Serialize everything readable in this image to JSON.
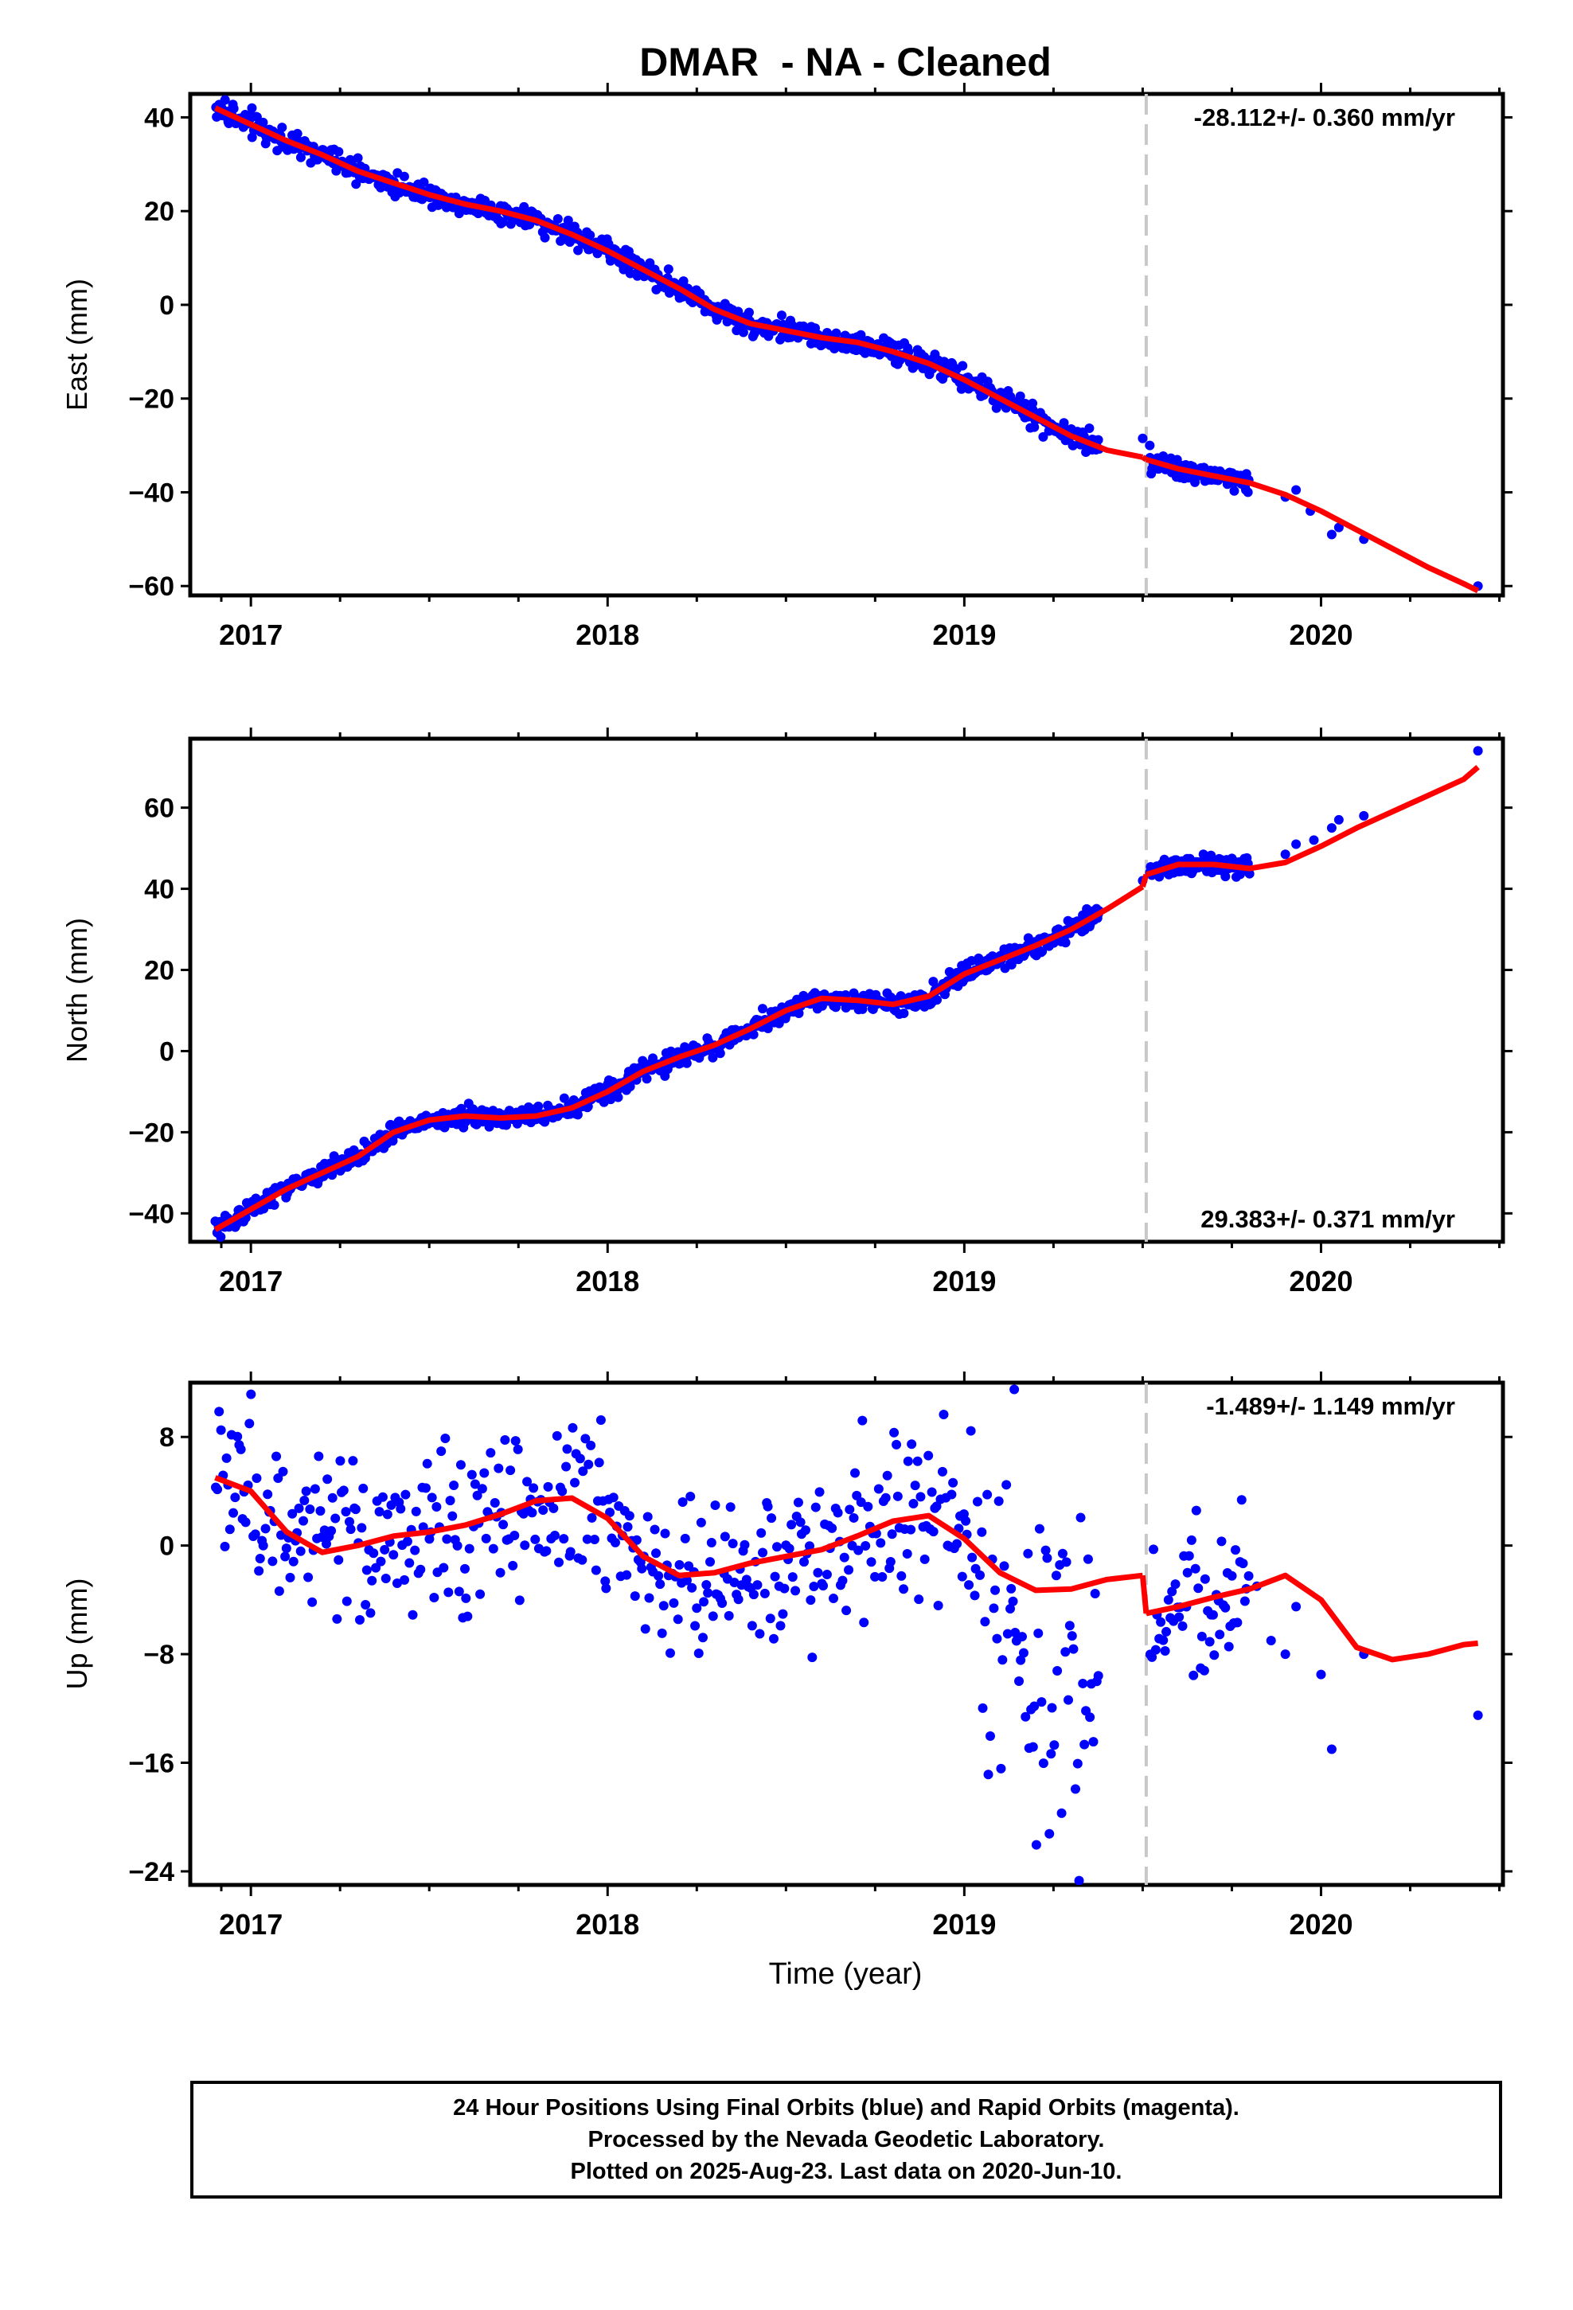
{
  "title": "DMAR  - NA - Cleaned",
  "xlabel": "Time (year)",
  "footer": {
    "line1": "24 Hour Positions Using Final Orbits (blue) and Rapid Orbits (magenta).",
    "line2": "Processed by the Nevada Geodetic Laboratory.",
    "line3": "Plotted on 2025-Aug-23. Last data on 2020-Jun-10."
  },
  "colors": {
    "data": "#0000ff",
    "model": "#ff0000",
    "break_line": "#c8c8c8",
    "frame": "#000000"
  },
  "chart_data": [
    {
      "type": "scatter",
      "component": "east",
      "ylabel": "East (mm)",
      "rate_label": "-28.112+/- 0.360 mm/yr",
      "rate_position": "top",
      "xlim": [
        2016.83,
        2020.51
      ],
      "ylim": [
        -62,
        45
      ],
      "yticks": [
        40,
        20,
        0,
        -20,
        -40,
        -60
      ],
      "xticks": [
        2017,
        2018,
        2019,
        2020
      ],
      "break_epoch": 2019.51,
      "model_x": [
        2016.9,
        2017.0,
        2017.1,
        2017.2,
        2017.3,
        2017.4,
        2017.5,
        2017.6,
        2017.7,
        2017.8,
        2017.9,
        2018.0,
        2018.1,
        2018.2,
        2018.3,
        2018.4,
        2018.5,
        2018.6,
        2018.7,
        2018.8,
        2018.9,
        2019.0,
        2019.1,
        2019.2,
        2019.3,
        2019.4,
        2019.5,
        2019.51,
        2019.6,
        2019.7,
        2019.8,
        2019.9,
        2020.0,
        2020.1,
        2020.2,
        2020.3,
        2020.4,
        2020.44
      ],
      "model_y": [
        42,
        38.5,
        35,
        32,
        28.5,
        26,
        23.5,
        21.5,
        20,
        18,
        15,
        11.5,
        7.5,
        3.5,
        -1,
        -4,
        -5.5,
        -7,
        -8,
        -10,
        -12.5,
        -16,
        -20,
        -24,
        -28,
        -31,
        -32.5,
        -33,
        -35,
        -36.5,
        -38,
        -40.5,
        -44,
        -48,
        -52,
        -56,
        -59.5,
        -61
      ],
      "sparse_points": [
        [
          2019.5,
          -28.5
        ],
        [
          2019.52,
          -30
        ],
        [
          2019.9,
          -41
        ],
        [
          2019.93,
          -39.5
        ],
        [
          2019.97,
          -44
        ],
        [
          2020.03,
          -49
        ],
        [
          2020.05,
          -47.5
        ],
        [
          2020.12,
          -50
        ],
        [
          2020.44,
          -60
        ]
      ],
      "dense_ranges": [
        [
          2016.9,
          2019.38
        ],
        [
          2019.52,
          2019.8
        ]
      ],
      "scatter_sd": 1.2
    },
    {
      "type": "scatter",
      "component": "north",
      "ylabel": "North (mm)",
      "rate_label": "29.383+/- 0.371 mm/yr",
      "rate_position": "bottom",
      "xlim": [
        2016.83,
        2020.51
      ],
      "ylim": [
        -47,
        77
      ],
      "yticks": [
        60,
        40,
        20,
        0,
        -20,
        -40
      ],
      "xticks": [
        2017,
        2018,
        2019,
        2020
      ],
      "break_epoch": 2019.51,
      "model_x": [
        2016.9,
        2017.0,
        2017.1,
        2017.2,
        2017.3,
        2017.4,
        2017.5,
        2017.6,
        2017.7,
        2017.8,
        2017.9,
        2018.0,
        2018.1,
        2018.2,
        2018.3,
        2018.4,
        2018.5,
        2018.6,
        2018.7,
        2018.8,
        2018.9,
        2019.0,
        2019.1,
        2019.2,
        2019.3,
        2019.4,
        2019.5,
        2019.51,
        2019.6,
        2019.7,
        2019.8,
        2019.9,
        2020.0,
        2020.1,
        2020.2,
        2020.3,
        2020.4,
        2020.44
      ],
      "model_y": [
        -44,
        -39,
        -34,
        -30,
        -26,
        -20,
        -17,
        -16,
        -16.5,
        -16,
        -14,
        -10,
        -5,
        -1.5,
        1.5,
        5.5,
        10,
        13,
        12.5,
        11.5,
        13.5,
        19,
        22.5,
        26,
        30,
        35,
        40.5,
        43.5,
        46,
        46,
        45,
        46.5,
        50.5,
        55,
        59,
        63,
        67,
        70
      ],
      "sparse_points": [
        [
          2019.5,
          42
        ],
        [
          2019.52,
          44
        ],
        [
          2019.9,
          48.5
        ],
        [
          2019.93,
          51
        ],
        [
          2019.98,
          52
        ],
        [
          2020.03,
          55
        ],
        [
          2020.05,
          57
        ],
        [
          2020.12,
          58
        ],
        [
          2020.44,
          74
        ]
      ],
      "dense_ranges": [
        [
          2016.9,
          2019.38
        ],
        [
          2019.52,
          2019.8
        ]
      ],
      "scatter_sd": 1.2
    },
    {
      "type": "scatter",
      "component": "up",
      "ylabel": "Up (mm)",
      "rate_label": "-1.489+/- 1.149 mm/yr",
      "rate_position": "top",
      "xlim": [
        2016.83,
        2020.51
      ],
      "ylim": [
        -25,
        12
      ],
      "yticks": [
        8,
        0,
        -8,
        -16,
        -24
      ],
      "xticks": [
        2017,
        2018,
        2019,
        2020
      ],
      "break_epoch": 2019.51,
      "model_x": [
        2016.9,
        2017.0,
        2017.1,
        2017.2,
        2017.3,
        2017.4,
        2017.5,
        2017.6,
        2017.7,
        2017.8,
        2017.9,
        2018.0,
        2018.1,
        2018.2,
        2018.3,
        2018.4,
        2018.5,
        2018.6,
        2018.7,
        2018.8,
        2018.9,
        2019.0,
        2019.1,
        2019.2,
        2019.3,
        2019.4,
        2019.5,
        2019.51,
        2019.6,
        2019.7,
        2019.8,
        2019.9,
        2020.0,
        2020.1,
        2020.2,
        2020.3,
        2020.4,
        2020.44
      ],
      "model_y": [
        5,
        4,
        1,
        -0.5,
        0,
        0.7,
        1,
        1.5,
        2.3,
        3.3,
        3.5,
        2,
        -0.8,
        -2.2,
        -2,
        -1.3,
        -0.8,
        -0.3,
        0.7,
        1.8,
        2.2,
        0.5,
        -2,
        -3.3,
        -3.2,
        -2.5,
        -2.2,
        -5,
        -4.5,
        -3.8,
        -3.2,
        -2.2,
        -4,
        -7.5,
        -8.4,
        -8,
        -7.3,
        -7.2
      ],
      "sparse_points": [
        [
          2019.14,
          11.5
        ],
        [
          2019.9,
          -8
        ],
        [
          2019.93,
          -4.5
        ],
        [
          2020.0,
          -9.5
        ],
        [
          2020.03,
          -15
        ],
        [
          2020.12,
          -8
        ],
        [
          2020.44,
          -12.5
        ],
        [
          2019.82,
          -3
        ],
        [
          2019.86,
          -7
        ]
      ],
      "dense_ranges": [
        [
          2016.9,
          2019.38
        ],
        [
          2019.52,
          2019.8
        ]
      ],
      "scatter_sd": 3.0
    }
  ]
}
